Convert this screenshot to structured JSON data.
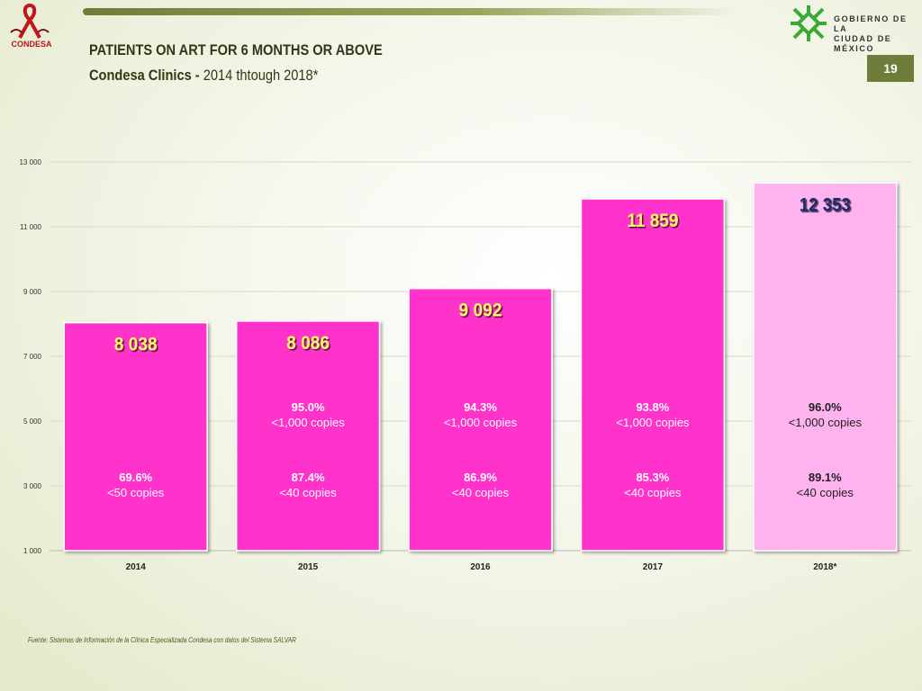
{
  "header": {
    "title": "PATIENTS ON ART FOR 6 MONTHS OR ABOVE",
    "subtitle_bold": "Condesa Clinics - ",
    "subtitle_rest": "2014 thtough 2018*",
    "page_number": "19",
    "left_logo_label": "CONDESA",
    "gov_line1": "GOBIERNO DE LA",
    "gov_line2": "CIUDAD DE MÉXICO"
  },
  "footer": {
    "source": "Fuente: Sistemas de Información de la Clínica Especializada Condesa con datos del Sistema SALVAR"
  },
  "colors": {
    "bar": "#ff33cc",
    "bar_last": "#ffb3ee",
    "value_label": "#fff566",
    "value_label_last": "#1f2a6e",
    "accent": "#6f7d3a"
  },
  "chart_data": {
    "type": "bar",
    "title": "",
    "xlabel": "",
    "ylabel": "",
    "categories": [
      "2014",
      "2015",
      "2016",
      "2017",
      "2018*"
    ],
    "values": [
      8038,
      8086,
      9092,
      11859,
      12353
    ],
    "value_labels": [
      "8 038",
      "8 086",
      "9 092",
      "11 859",
      "12 353"
    ],
    "ylim": [
      1000,
      13000
    ],
    "yticks": [
      1000,
      3000,
      5000,
      7000,
      9000,
      11000,
      13000
    ],
    "ytick_labels": [
      "1 000",
      "3 000",
      "5 000",
      "7 000",
      "9 000",
      "11 000",
      "13 000"
    ],
    "grid": true,
    "annotations": [
      {
        "category": "2014",
        "lt1000_pct": "",
        "lt1000_text": "",
        "low_pct": "69.6%",
        "low_text": "<50 copies"
      },
      {
        "category": "2015",
        "lt1000_pct": "95.0%",
        "lt1000_text": "<1,000 copies",
        "low_pct": "87.4%",
        "low_text": "<40 copies"
      },
      {
        "category": "2016",
        "lt1000_pct": "94.3%",
        "lt1000_text": "<1,000 copies",
        "low_pct": "86.9%",
        "low_text": "<40 copies"
      },
      {
        "category": "2017",
        "lt1000_pct": "93.8%",
        "lt1000_text": "<1,000 copies",
        "low_pct": "85.3%",
        "low_text": "<40 copies"
      },
      {
        "category": "2018*",
        "lt1000_pct": "96.0%",
        "lt1000_text": "<1,000 copies",
        "low_pct": "89.1%",
        "low_text": "<40 copies"
      }
    ]
  }
}
